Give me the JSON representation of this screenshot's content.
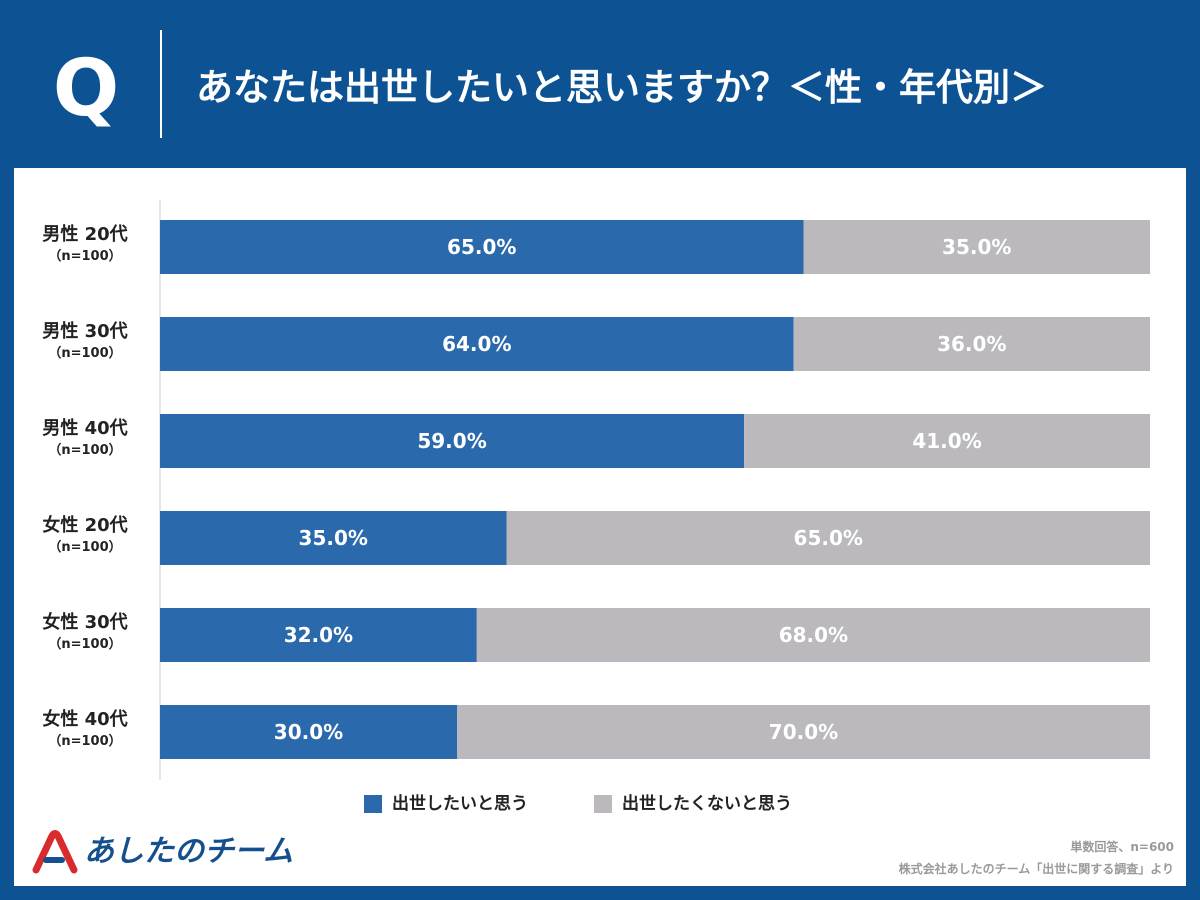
{
  "header": {
    "q_letter": "Q",
    "title": "あなたは出世したいと思いますか？＜性・年代別＞"
  },
  "colors": {
    "background": "#0d5394",
    "want": "#2a6aac",
    "not_want": "#bbb9bd",
    "logo": "#14508e",
    "logo_accent": "#d92b2b"
  },
  "chart_data": {
    "type": "bar",
    "orientation": "horizontal",
    "stacked": true,
    "categories": [
      {
        "label": "男性 20代",
        "n": "（n=100）"
      },
      {
        "label": "男性 30代",
        "n": "（n=100）"
      },
      {
        "label": "男性 40代",
        "n": "（n=100）"
      },
      {
        "label": "女性 20代",
        "n": "（n=100）"
      },
      {
        "label": "女性 30代",
        "n": "（n=100）"
      },
      {
        "label": "女性 40代",
        "n": "（n=100）"
      }
    ],
    "series": [
      {
        "name": "出世したいと思う",
        "values": [
          65.0,
          64.0,
          59.0,
          35.0,
          32.0,
          30.0
        ],
        "color": "#2a6aac"
      },
      {
        "name": "出世したくないと思う",
        "values": [
          35.0,
          36.0,
          41.0,
          65.0,
          68.0,
          70.0
        ],
        "color": "#bbb9bd"
      }
    ],
    "value_suffix": "%",
    "xlim": [
      0,
      100
    ],
    "legend": "bottom",
    "grid": false
  },
  "footer": {
    "logo_text": "あしたのチーム",
    "note1": "単数回答、n=600",
    "note2": "株式会社あしたのチーム「出世に関する調査」より"
  }
}
